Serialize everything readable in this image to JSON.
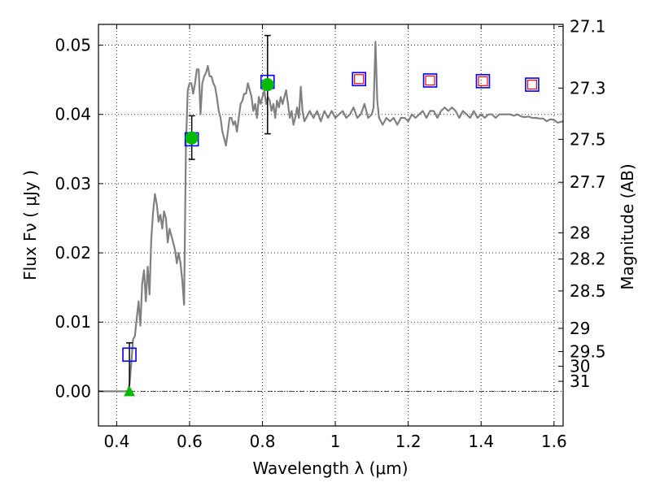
{
  "chart_data": {
    "type": "line",
    "title": "",
    "xlabel": "Wavelength  λ (μm)",
    "ylabel": "Flux  Fν  ( μJy )",
    "ylabel_right": "Magnitude (AB)",
    "xlim": [
      0.35,
      1.625
    ],
    "ylim": [
      -0.005,
      0.053
    ],
    "grid": true,
    "x_ticks": [
      0.4,
      0.6,
      0.8,
      1.0,
      1.2,
      1.4,
      1.6
    ],
    "x_tick_labels": [
      "0.4",
      "0.6",
      "0.8",
      "1",
      "1.2",
      "1.4",
      "1.6"
    ],
    "y_ticks": [
      0.0,
      0.01,
      0.02,
      0.03,
      0.04,
      0.05
    ],
    "y_tick_labels": [
      "0.00",
      "0.01",
      "0.02",
      "0.03",
      "0.04",
      "0.05"
    ],
    "right_ticks": [
      {
        "label": "27.1",
        "flux": 0.0527
      },
      {
        "label": "27.3",
        "flux": 0.0438
      },
      {
        "label": "27.5",
        "flux": 0.0364
      },
      {
        "label": "27.7",
        "flux": 0.0302
      },
      {
        "label": "28",
        "flux": 0.0229
      },
      {
        "label": "28.2",
        "flux": 0.0191
      },
      {
        "label": "28.5",
        "flux": 0.0145
      },
      {
        "label": "29",
        "flux": 0.0091
      },
      {
        "label": "29.5",
        "flux": 0.00575
      },
      {
        "label": "30",
        "flux": 0.00363
      },
      {
        "label": "31",
        "flux": 0.00145
      }
    ],
    "spectrum": {
      "color": "#808080",
      "points": [
        [
          0.35,
          0.0
        ],
        [
          0.43,
          0.0
        ],
        [
          0.435,
          0.001
        ],
        [
          0.44,
          0.004
        ],
        [
          0.445,
          0.0075
        ],
        [
          0.45,
          0.008
        ],
        [
          0.455,
          0.0105
        ],
        [
          0.46,
          0.013
        ],
        [
          0.465,
          0.0095
        ],
        [
          0.47,
          0.0155
        ],
        [
          0.475,
          0.0175
        ],
        [
          0.48,
          0.013
        ],
        [
          0.485,
          0.018
        ],
        [
          0.49,
          0.014
        ],
        [
          0.495,
          0.022
        ],
        [
          0.5,
          0.026
        ],
        [
          0.505,
          0.0285
        ],
        [
          0.51,
          0.027
        ],
        [
          0.515,
          0.0245
        ],
        [
          0.52,
          0.0255
        ],
        [
          0.525,
          0.0235
        ],
        [
          0.53,
          0.026
        ],
        [
          0.535,
          0.025
        ],
        [
          0.54,
          0.0215
        ],
        [
          0.545,
          0.0235
        ],
        [
          0.55,
          0.0225
        ],
        [
          0.555,
          0.0215
        ],
        [
          0.56,
          0.0205
        ],
        [
          0.565,
          0.0185
        ],
        [
          0.57,
          0.02
        ],
        [
          0.575,
          0.0185
        ],
        [
          0.58,
          0.016
        ],
        [
          0.585,
          0.0125
        ],
        [
          0.59,
          0.0355
        ],
        [
          0.595,
          0.0435
        ],
        [
          0.6,
          0.0445
        ],
        [
          0.605,
          0.0445
        ],
        [
          0.61,
          0.043
        ],
        [
          0.615,
          0.0445
        ],
        [
          0.62,
          0.0465
        ],
        [
          0.625,
          0.0465
        ],
        [
          0.63,
          0.04
        ],
        [
          0.635,
          0.0445
        ],
        [
          0.64,
          0.0455
        ],
        [
          0.645,
          0.046
        ],
        [
          0.65,
          0.047
        ],
        [
          0.655,
          0.0455
        ],
        [
          0.66,
          0.0455
        ],
        [
          0.665,
          0.0445
        ],
        [
          0.67,
          0.044
        ],
        [
          0.675,
          0.0425
        ],
        [
          0.68,
          0.0405
        ],
        [
          0.685,
          0.0395
        ],
        [
          0.69,
          0.0375
        ],
        [
          0.695,
          0.0365
        ],
        [
          0.7,
          0.0355
        ],
        [
          0.705,
          0.0375
        ],
        [
          0.71,
          0.0395
        ],
        [
          0.715,
          0.0395
        ],
        [
          0.72,
          0.0385
        ],
        [
          0.725,
          0.039
        ],
        [
          0.73,
          0.0375
        ],
        [
          0.735,
          0.0395
        ],
        [
          0.74,
          0.0415
        ],
        [
          0.745,
          0.042
        ],
        [
          0.75,
          0.043
        ],
        [
          0.755,
          0.043
        ],
        [
          0.76,
          0.0445
        ],
        [
          0.765,
          0.0435
        ],
        [
          0.77,
          0.0425
        ],
        [
          0.775,
          0.0405
        ],
        [
          0.78,
          0.0415
        ],
        [
          0.785,
          0.0395
        ],
        [
          0.79,
          0.0425
        ],
        [
          0.795,
          0.0415
        ],
        [
          0.8,
          0.0425
        ],
        [
          0.805,
          0.0435
        ],
        [
          0.81,
          0.0415
        ],
        [
          0.815,
          0.0425
        ],
        [
          0.82,
          0.042
        ],
        [
          0.825,
          0.0405
        ],
        [
          0.83,
          0.0415
        ],
        [
          0.835,
          0.0395
        ],
        [
          0.84,
          0.042
        ],
        [
          0.845,
          0.041
        ],
        [
          0.85,
          0.0425
        ],
        [
          0.855,
          0.0415
        ],
        [
          0.86,
          0.0425
        ],
        [
          0.865,
          0.0435
        ],
        [
          0.87,
          0.0415
        ],
        [
          0.875,
          0.0395
        ],
        [
          0.88,
          0.0405
        ],
        [
          0.885,
          0.0385
        ],
        [
          0.89,
          0.0395
        ],
        [
          0.895,
          0.041
        ],
        [
          0.9,
          0.0395
        ],
        [
          0.905,
          0.044
        ],
        [
          0.91,
          0.0405
        ],
        [
          0.915,
          0.039
        ],
        [
          0.92,
          0.0395
        ],
        [
          0.93,
          0.0405
        ],
        [
          0.94,
          0.0395
        ],
        [
          0.95,
          0.0405
        ],
        [
          0.96,
          0.039
        ],
        [
          0.97,
          0.0405
        ],
        [
          0.98,
          0.0395
        ],
        [
          0.99,
          0.0405
        ],
        [
          1.0,
          0.0395
        ],
        [
          1.01,
          0.04
        ],
        [
          1.02,
          0.0405
        ],
        [
          1.03,
          0.0395
        ],
        [
          1.04,
          0.04
        ],
        [
          1.05,
          0.041
        ],
        [
          1.06,
          0.0395
        ],
        [
          1.07,
          0.04
        ],
        [
          1.08,
          0.0415
        ],
        [
          1.09,
          0.0395
        ],
        [
          1.1,
          0.04
        ],
        [
          1.105,
          0.041
        ],
        [
          1.11,
          0.0505
        ],
        [
          1.115,
          0.042
        ],
        [
          1.12,
          0.0395
        ],
        [
          1.13,
          0.0385
        ],
        [
          1.14,
          0.0395
        ],
        [
          1.15,
          0.039
        ],
        [
          1.16,
          0.0395
        ],
        [
          1.17,
          0.0385
        ],
        [
          1.18,
          0.0395
        ],
        [
          1.19,
          0.0395
        ],
        [
          1.2,
          0.039
        ],
        [
          1.21,
          0.04
        ],
        [
          1.22,
          0.0395
        ],
        [
          1.23,
          0.04
        ],
        [
          1.24,
          0.0405
        ],
        [
          1.25,
          0.0395
        ],
        [
          1.26,
          0.0405
        ],
        [
          1.27,
          0.0405
        ],
        [
          1.28,
          0.0395
        ],
        [
          1.29,
          0.0405
        ],
        [
          1.3,
          0.041
        ],
        [
          1.31,
          0.0405
        ],
        [
          1.32,
          0.041
        ],
        [
          1.33,
          0.0405
        ],
        [
          1.34,
          0.0395
        ],
        [
          1.35,
          0.0405
        ],
        [
          1.36,
          0.04
        ],
        [
          1.37,
          0.0395
        ],
        [
          1.38,
          0.0405
        ],
        [
          1.39,
          0.0395
        ],
        [
          1.4,
          0.04
        ],
        [
          1.41,
          0.0395
        ],
        [
          1.42,
          0.04
        ],
        [
          1.43,
          0.04
        ],
        [
          1.44,
          0.0395
        ],
        [
          1.45,
          0.04
        ],
        [
          1.46,
          0.04
        ],
        [
          1.47,
          0.04
        ],
        [
          1.48,
          0.04
        ],
        [
          1.49,
          0.0398
        ],
        [
          1.5,
          0.04
        ],
        [
          1.51,
          0.0397
        ],
        [
          1.52,
          0.0396
        ],
        [
          1.53,
          0.0397
        ],
        [
          1.54,
          0.0395
        ],
        [
          1.55,
          0.0395
        ],
        [
          1.56,
          0.0394
        ],
        [
          1.57,
          0.0394
        ],
        [
          1.58,
          0.039
        ],
        [
          1.59,
          0.0393
        ],
        [
          1.6,
          0.0392
        ],
        [
          1.61,
          0.0388
        ],
        [
          1.625,
          0.039
        ]
      ]
    },
    "blue_squares": [
      {
        "x": 0.435,
        "y": 0.0053
      },
      {
        "x": 0.606,
        "y": 0.0364
      },
      {
        "x": 0.814,
        "y": 0.0447
      }
    ],
    "red_blue_squares": [
      {
        "x": 1.065,
        "y": 0.0451
      },
      {
        "x": 1.26,
        "y": 0.0449
      },
      {
        "x": 1.405,
        "y": 0.0448
      },
      {
        "x": 1.54,
        "y": 0.0443
      }
    ],
    "green_circles": [
      {
        "x": 0.606,
        "y": 0.0366
      },
      {
        "x": 0.814,
        "y": 0.0443
      }
    ],
    "green_triangles": [
      {
        "x": 0.435,
        "y": 0.0
      }
    ],
    "error_bars": [
      {
        "x": 0.435,
        "y_low": 0.0,
        "y_high": 0.007
      },
      {
        "x": 0.606,
        "y_low": 0.0335,
        "y_high": 0.0398
      },
      {
        "x": 0.814,
        "y_low": 0.0372,
        "y_high": 0.0514
      }
    ],
    "colors": {
      "spectrum": "#808080",
      "square_outer": "#0000ff",
      "square_inner": "#ff0000",
      "marker_fill": "#00bb00",
      "error_bar": "#000000",
      "zero_line": "#000000"
    }
  }
}
